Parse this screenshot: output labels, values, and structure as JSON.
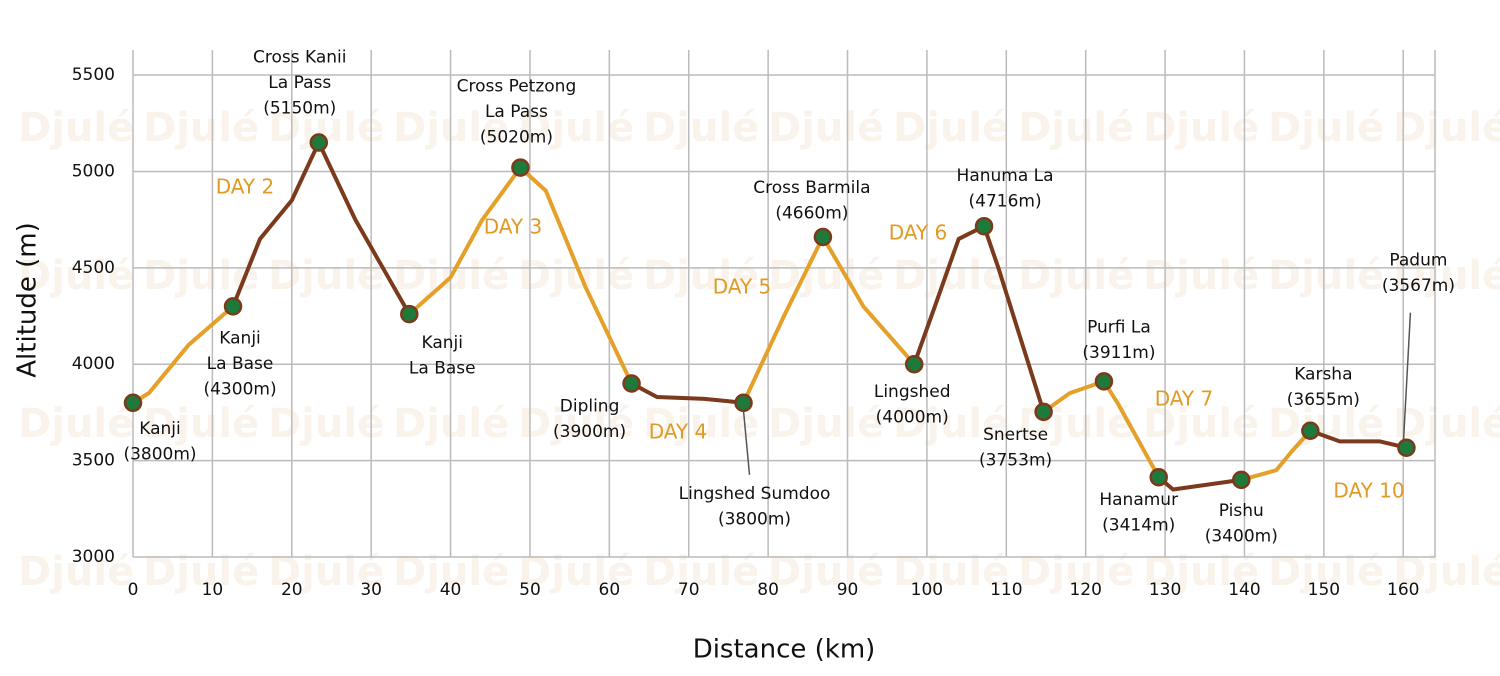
{
  "chart_data": {
    "type": "profile",
    "xlabel": "Distance (km)",
    "ylabel": "Altitude (m)",
    "watermark": "Djulé",
    "xlim": [
      0,
      164
    ],
    "xticks": [
      0,
      10,
      20,
      30,
      40,
      50,
      60,
      70,
      80,
      90,
      100,
      110,
      120,
      130,
      140,
      150,
      160
    ],
    "ylim": [
      3000,
      5630
    ],
    "yticks": [
      3000,
      3500,
      4000,
      4500,
      5000,
      5500
    ],
    "grid": true,
    "series": [
      {
        "color": "#e5a02a",
        "x": [
          0,
          2,
          7,
          12.6
        ],
        "values": [
          3800,
          3850,
          4100,
          4300
        ]
      },
      {
        "color": "#7b3a1c",
        "x": [
          12.6,
          16,
          20,
          23.4,
          28,
          34.8
        ],
        "values": [
          4300,
          4650,
          4850,
          5150,
          4750,
          4260
        ]
      },
      {
        "color": "#e5a02a",
        "x": [
          34.8,
          40,
          44,
          48.8,
          52,
          57,
          62.8
        ],
        "values": [
          4260,
          4450,
          4750,
          5020,
          4900,
          4400,
          3900
        ]
      },
      {
        "color": "#7b3a1c",
        "x": [
          62.8,
          66,
          72,
          76.9
        ],
        "values": [
          3900,
          3830,
          3820,
          3800
        ]
      },
      {
        "color": "#e5a02a",
        "x": [
          76.9,
          82,
          86.9,
          92,
          98.4
        ],
        "values": [
          3800,
          4250,
          4660,
          4300,
          4000
        ]
      },
      {
        "color": "#7b3a1c",
        "x": [
          98.4,
          101,
          104,
          107.2,
          109,
          114.7
        ],
        "values": [
          4000,
          4300,
          4650,
          4716,
          4500,
          3753
        ]
      },
      {
        "color": "#e5a02a",
        "x": [
          114.7,
          118,
          122.3,
          124,
          129.2
        ],
        "values": [
          3753,
          3850,
          3911,
          3800,
          3414
        ]
      },
      {
        "color": "#7b3a1c",
        "x": [
          129.2,
          131,
          139.6
        ],
        "values": [
          3414,
          3350,
          3400
        ]
      },
      {
        "color": "#e5a02a",
        "x": [
          139.6,
          144,
          146,
          148.3
        ],
        "values": [
          3400,
          3450,
          3550,
          3655
        ]
      },
      {
        "color": "#7b3a1c",
        "x": [
          148.3,
          152,
          157,
          160.4
        ],
        "values": [
          3655,
          3600,
          3600,
          3567
        ]
      }
    ],
    "waypoints": [
      {
        "label": [
          "Kanji",
          "(3800m)"
        ],
        "x": 0,
        "value": 3800
      },
      {
        "label": [
          "Kanji",
          "La Base",
          "(4300m)"
        ],
        "x": 12.6,
        "value": 4300
      },
      {
        "label": [
          "Cross Kanii",
          "La Pass",
          "(5150m)"
        ],
        "x": 23.4,
        "value": 5150
      },
      {
        "label": [
          "Kanji",
          "La Base"
        ],
        "x": 34.8,
        "value": 4260
      },
      {
        "label": [
          "Cross Petzong",
          "La Pass",
          "(5020m)"
        ],
        "x": 48.8,
        "value": 5020
      },
      {
        "label": [
          "Dipling",
          "(3900m)"
        ],
        "x": 62.8,
        "value": 3900
      },
      {
        "label": [
          "Lingshed Sumdoo",
          "(3800m)"
        ],
        "x": 76.9,
        "value": 3800
      },
      {
        "label": [
          "Cross Barmila",
          "(4660m)"
        ],
        "x": 86.9,
        "value": 4660
      },
      {
        "label": [
          "Lingshed",
          "(4000m)"
        ],
        "x": 98.4,
        "value": 4000
      },
      {
        "label": [
          "Hanuma La",
          "(4716m)"
        ],
        "x": 107.2,
        "value": 4716
      },
      {
        "label": [
          "Snertse",
          "(3753m)"
        ],
        "x": 114.7,
        "value": 3753
      },
      {
        "label": [
          "Purfi La",
          "(3911m)"
        ],
        "x": 122.3,
        "value": 3911
      },
      {
        "label": [
          "Hanamur",
          "(3414m)"
        ],
        "x": 129.2,
        "value": 3414
      },
      {
        "label": [
          "Pishu",
          "(3400m)"
        ],
        "x": 139.6,
        "value": 3400
      },
      {
        "label": [
          "Karsha",
          "(3655m)"
        ],
        "x": 148.3,
        "value": 3655
      },
      {
        "label": [
          "Padum",
          "(3567m)"
        ],
        "x": 160.4,
        "value": 3567
      }
    ],
    "day_labels": [
      "DAY 2",
      "DAY 3",
      "DAY 4",
      "DAY 5",
      "DAY 6",
      "DAY 7",
      "DAY 10"
    ],
    "day_color": "#e09a25",
    "marker_color": "#1e7a3a"
  }
}
